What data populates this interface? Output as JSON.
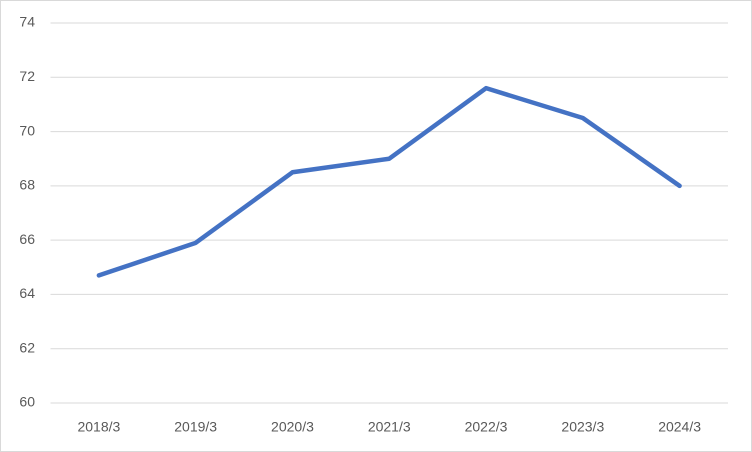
{
  "chart_data": {
    "type": "line",
    "categories": [
      "2018/3",
      "2019/3",
      "2020/3",
      "2021/3",
      "2022/3",
      "2023/3",
      "2024/3"
    ],
    "series": [
      {
        "color": "#4472c4",
        "values": [
          64.7,
          65.9,
          68.5,
          69.0,
          71.6,
          70.5,
          68.0
        ]
      }
    ],
    "ylim": [
      60,
      74
    ],
    "yticks": [
      60,
      62,
      64,
      66,
      68,
      70,
      72,
      74
    ],
    "grid": true
  }
}
